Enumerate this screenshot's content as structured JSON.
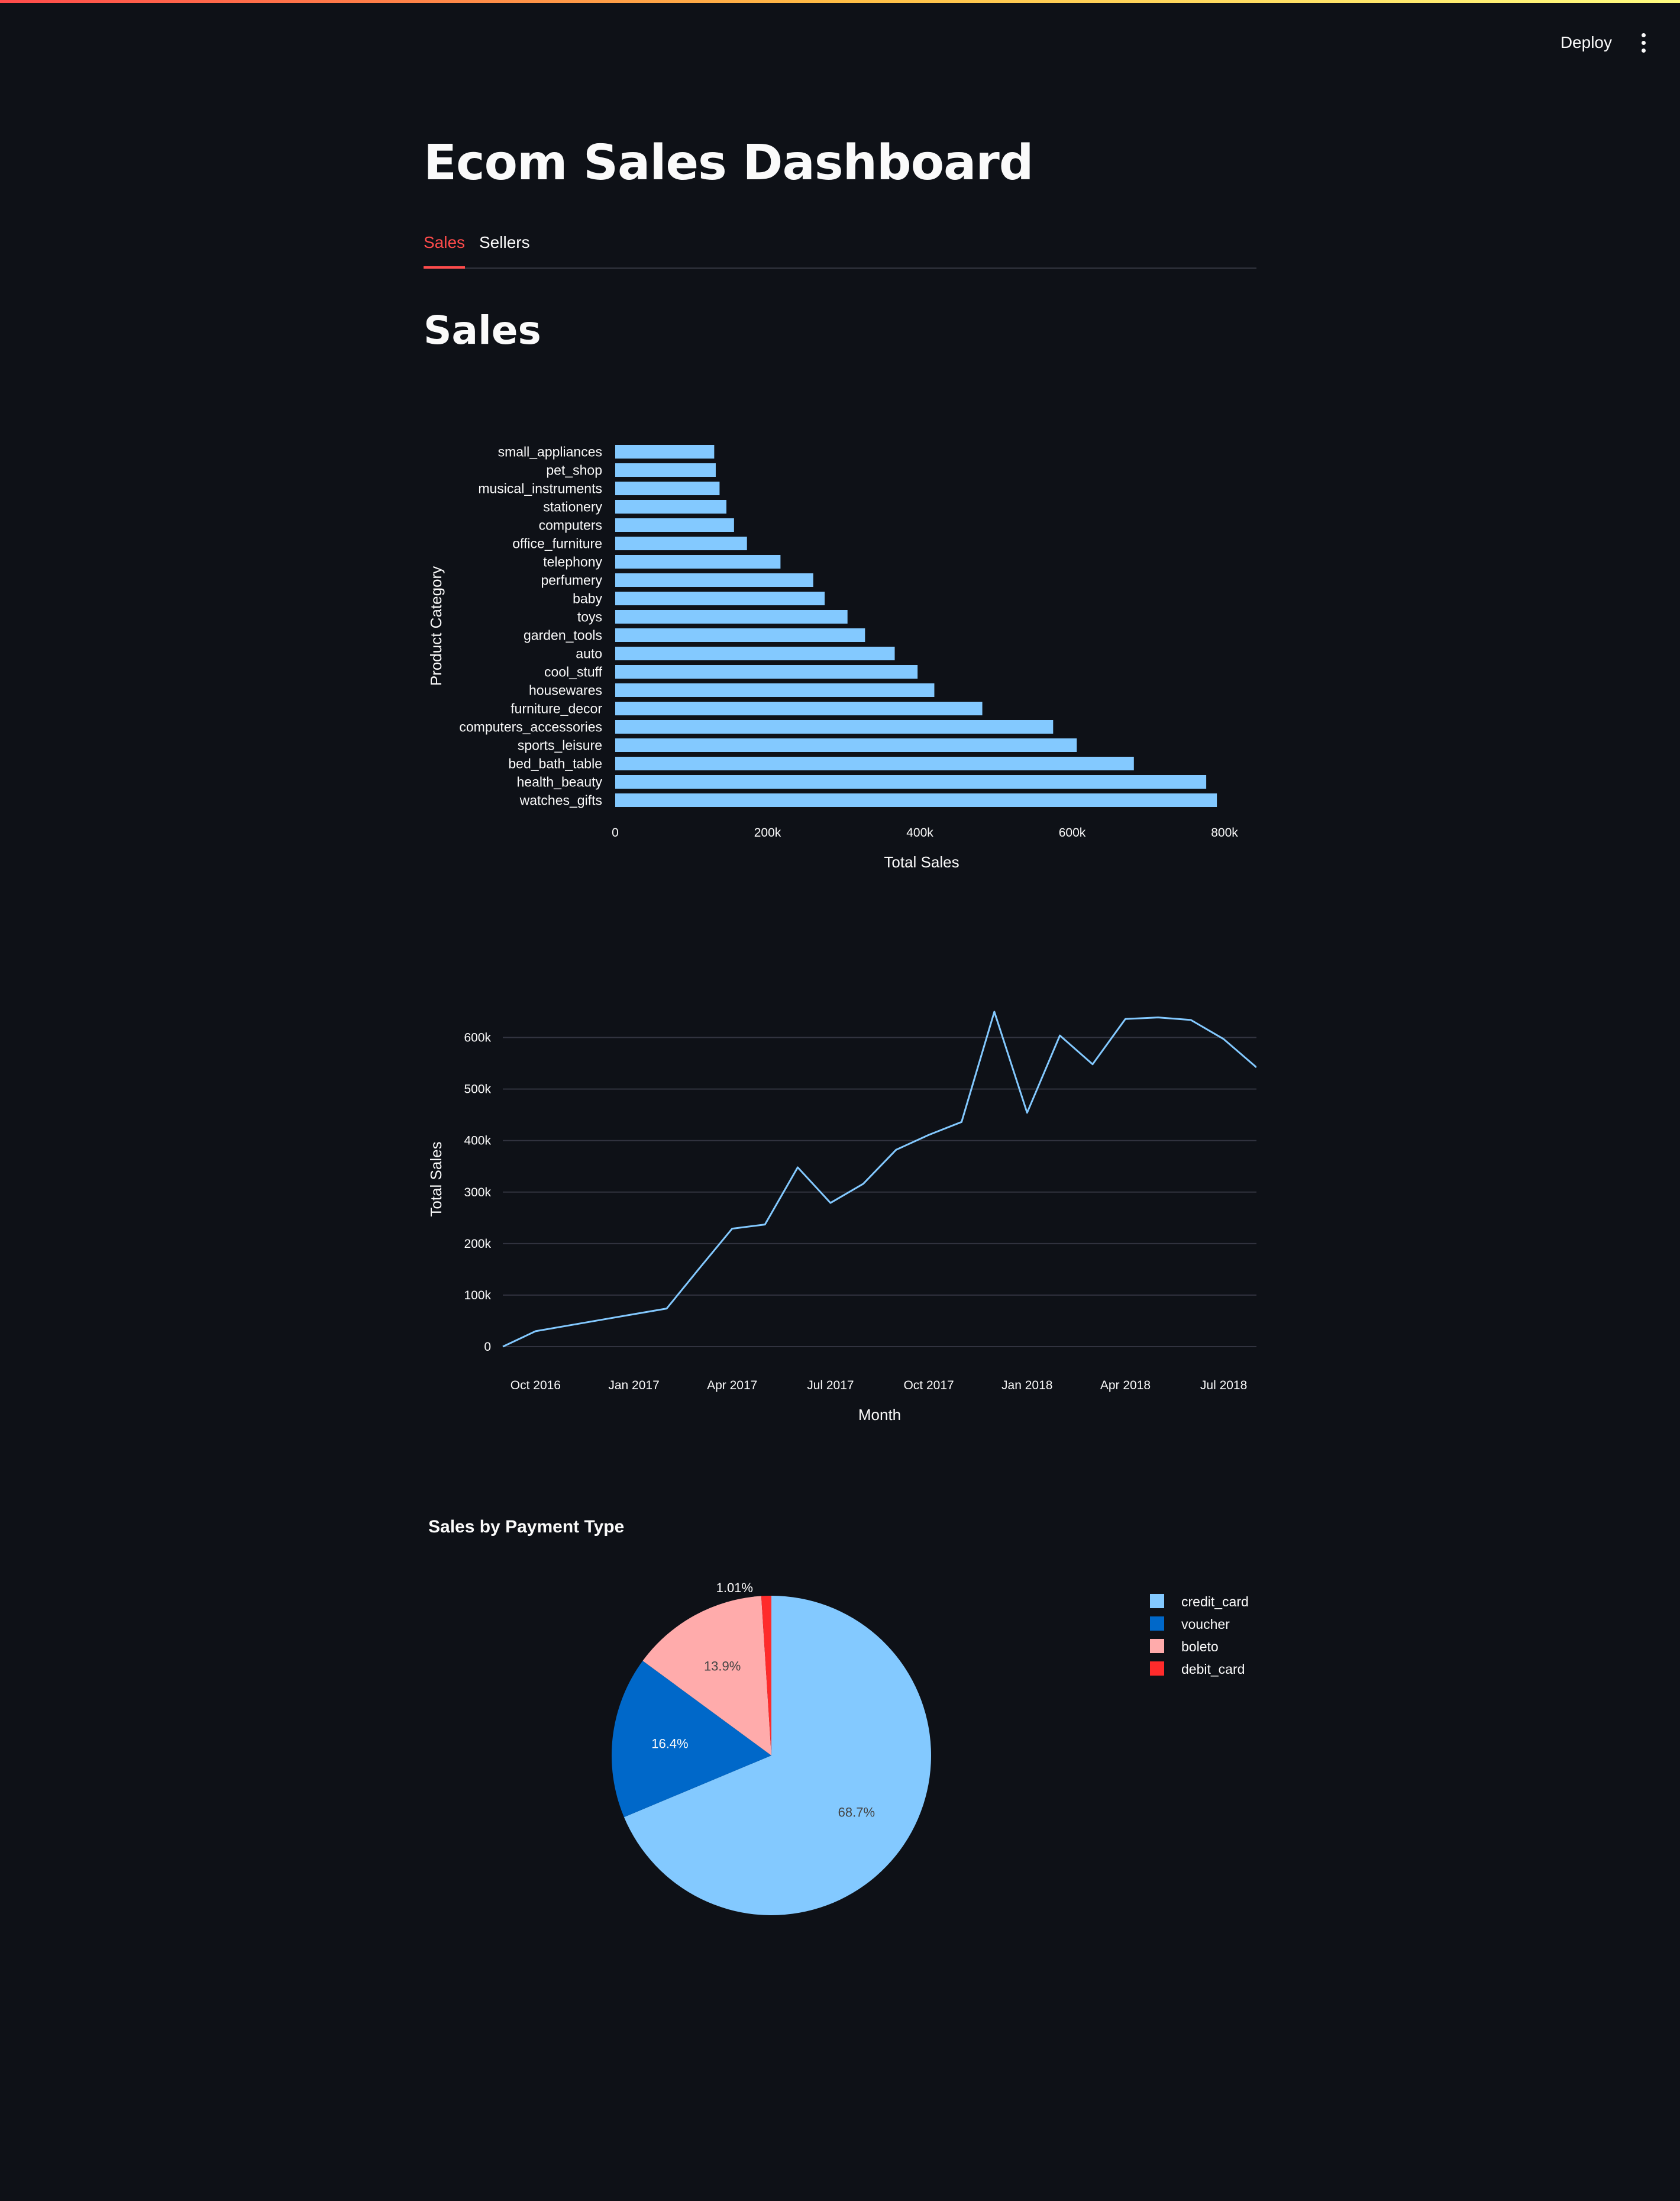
{
  "toolbar": {
    "deploy_label": "Deploy"
  },
  "page": {
    "title": "Ecom Sales Dashboard"
  },
  "tabs": [
    {
      "label": "Sales",
      "active": true
    },
    {
      "label": "Sellers",
      "active": false
    }
  ],
  "section": {
    "title": "Sales"
  },
  "colors": {
    "accent": "#ff4b4b",
    "bar": "#83c9ff",
    "line": "#83c9ff",
    "background": "#0e1117",
    "pie": [
      "#83c9ff",
      "#0068c9",
      "#ffabab",
      "#ff2b2b"
    ]
  },
  "chart_data": [
    {
      "type": "bar",
      "orientation": "horizontal",
      "xlabel": "Total Sales",
      "ylabel": "Product Category",
      "xlim": [
        0,
        800000
      ],
      "xticks": [
        {
          "value": 0,
          "label": "0"
        },
        {
          "value": 200000,
          "label": "200k"
        },
        {
          "value": 400000,
          "label": "400k"
        },
        {
          "value": 600000,
          "label": "600k"
        },
        {
          "value": 800000,
          "label": "800k"
        }
      ],
      "categories": [
        "small_appliances",
        "pet_shop",
        "musical_instruments",
        "stationery",
        "computers",
        "office_furniture",
        "telephony",
        "perfumery",
        "baby",
        "toys",
        "garden_tools",
        "auto",
        "cool_stuff",
        "housewares",
        "furniture_decor",
        "computers_accessories",
        "sports_leisure",
        "bed_bath_table",
        "health_beauty",
        "watches_gifts"
      ],
      "values": [
        130000,
        132000,
        137000,
        146000,
        156000,
        173000,
        217000,
        260000,
        275000,
        305000,
        328000,
        367000,
        397000,
        419000,
        482000,
        575000,
        606000,
        681000,
        776000,
        790000
      ]
    },
    {
      "type": "line",
      "xlabel": "Month",
      "ylabel": "Total Sales",
      "ylim": [
        0,
        650000
      ],
      "yticks": [
        {
          "value": 0,
          "label": "0"
        },
        {
          "value": 100000,
          "label": "100k"
        },
        {
          "value": 200000,
          "label": "200k"
        },
        {
          "value": 300000,
          "label": "300k"
        },
        {
          "value": 400000,
          "label": "400k"
        },
        {
          "value": 500000,
          "label": "500k"
        },
        {
          "value": 600000,
          "label": "600k"
        }
      ],
      "xticks": [
        "Oct 2016",
        "Jan 2017",
        "Apr 2017",
        "Jul 2017",
        "Oct 2017",
        "Jan 2018",
        "Apr 2018",
        "Jul 2018"
      ],
      "x": [
        "2016-09",
        "2016-10",
        "2016-11",
        "2016-12",
        "2017-01",
        "2017-02",
        "2017-03",
        "2017-04",
        "2017-05",
        "2017-06",
        "2017-07",
        "2017-08",
        "2017-09",
        "2017-10",
        "2017-11",
        "2017-12",
        "2018-01",
        "2018-02",
        "2018-03",
        "2018-04",
        "2018-05",
        "2018-06",
        "2018-07",
        "2018-08"
      ],
      "values": [
        0,
        30000,
        41000,
        52000,
        63000,
        74000,
        152000,
        229000,
        237000,
        348000,
        279000,
        316000,
        382000,
        411000,
        436000,
        650000,
        454000,
        604000,
        548000,
        636000,
        639000,
        634000,
        597000,
        542000
      ]
    },
    {
      "type": "pie",
      "title": "Sales by Payment Type",
      "legend_position": "top-right",
      "slices": [
        {
          "label": "credit_card",
          "value": 68.7,
          "text": "68.7%"
        },
        {
          "label": "voucher",
          "value": 16.4,
          "text": "16.4%"
        },
        {
          "label": "boleto",
          "value": 13.9,
          "text": "13.9%"
        },
        {
          "label": "debit_card",
          "value": 1.01,
          "text": "1.01%"
        }
      ]
    }
  ]
}
